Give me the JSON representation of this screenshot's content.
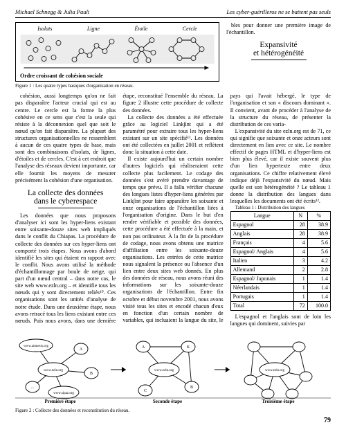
{
  "header": {
    "authors": "Michael Schnegg & Julia Pauli",
    "running_title": "Les cyber-guérilleros ne se battent pas seuls"
  },
  "figure1": {
    "labels": [
      "Isolats",
      "Ligne",
      "Étoile",
      "Cercle"
    ],
    "scale_label": "Ordre croissant de cohésion sociale",
    "caption": "Figure 1 : Les quatre types basiques d'organisation en réseau.",
    "node_fill": "#e9e9e9",
    "node_stroke": "#000000",
    "edge_color": "#000000",
    "bg": "#ececec"
  },
  "body": {
    "para1": "cohésion, aussi longtemps qu'on ne fait pas disparaître l'acteur crucial qui est au centre. Le cercle est la forme la plus cohésive en ce sens que c'est la seule qui résiste à la déconnexion quel que soit le nœud qu'on fait disparaître. La plupart des structures organisationnelles ne ressemblent à aucun de ces quatre types de base, mais sont des combinaisons d'isolats, de lignes, d'étoiles et de cercles. C'est à cet endroit que l'analyse des réseaux devient importante, car elle fournit les moyens de mesurer précisément la cohésion d'une organisation.",
    "h1_line1": "La collecte des données",
    "h1_line2": "dans le cyberespace",
    "para2": "Les données que nous proposons d'analyser ici sont les hyper-liens existant entre soixante-douze sites web impliqués dans le conflit du Chiapas. La procédure de collecte des données sur ces hyper-liens ont comporté trois étapes. Nous avons d'abord identifié les sites qui étaient en rapport avec le conflit. Nous avons utilisé la méthode d'échantillonnage par boule de neige, qui part d'un nœud central – dans notre cas, le site web www.ezln.org – et identifie tous les nœuds qui y sont directement reliés¹⁰. Ces organisations sont les unités d'analyse de notre étude. Dans une deuxième étape, nous avons retracé tous les liens existant entre ces nœuds. Puis nous avons, dans une dernière étape, reconstitué l'ensemble du réseau. La figure 2 illustre cette procédure de collecte des données.",
    "para3": "La collecte des données a été effectuée grâce au logiciel Link∫int qui a été paramétré pour extraire tous les hyper-liens existant sur un site spécifié¹¹. Les données ont été collectées en juillet 2001 et reflètent donc la situation à cette date.",
    "para4": "Il existe aujourd'hui un certain nombre d'autres logiciels qui réaliseraient cette collecte plus facilement. Le codage des données s'est avéré prendre davantage de temps que prévu. Il a fallu vérifier chacune des longues listes d'hyper-liens générées par Link∫int pour faire apparaître les soixante et onze organisations de l'échantillon liées à l'organisation d'origine. Dans le but d'en rendre vérifiable et possible des données, cette procédure a été effectuée à la main, et non pas ordinateur. À la fin de la procédure de codage, nous avons obtenu une matrice d'affiliation entre les soixante-douze organisations. Les entrées de cette matrice nous signalent la présence ou l'absence d'un lien entre deux sites web donnés. En plus des données de réseau, nous avons réuni des informations sur les soixante-douze organisations de l'échantillon. Entre fin octobre et début novembre 2001, nous avons visité tous les sites et encodé chacun d'eux en fonction d'un certain nombre de variables, qui incluaient la langue du site, le pays qui l'avait hébergé, le type de l'organisation et son « discours dominant ». Il convient, avant de procéder à l'analyse de la structure du réseau, de présenter la distribution de ces varia-",
    "para_topright": "bles pour donner une première image de l'échantillon.",
    "h2_line1": "Expansivité",
    "h2_line2": "et hétérogénéité",
    "para5": "L'expansivité du site ezln.org est de 71, ce qui signifie que soixante et onze acteurs sont directement en lien avec ce site. Le nombre effectif de pages HTML et d'hyper-liens est bien plus élevé, car il existe souvent plus d'un lien hypertexte entre deux organisations. Ce chiffre relativement élevé indique déjà l'expansivité du nœud. Mais quelle est son hétérogénéité ? Le tableau 1 donne la distribution des langues dans lesquelles les documents ont été écrits¹².",
    "para6": "L'espagnol et l'anglais sont de loin les langues qui dominent, suivies par"
  },
  "table1": {
    "caption": "Tableau 1 : Distribution des langues",
    "columns": [
      "Langue",
      "N",
      "%"
    ],
    "rows": [
      [
        "Espagnol",
        "28",
        "38.9"
      ],
      [
        "Anglais",
        "28",
        "38.9"
      ],
      [
        "Français",
        "4",
        "5.6"
      ],
      [
        "Espagnol/\nAnglais",
        "4",
        "5.6"
      ],
      [
        "Italien",
        "3",
        "4.2"
      ],
      [
        "Allemand",
        "2",
        "2.8"
      ],
      [
        "Espagnol/\nJaponais",
        "1",
        "1.4"
      ],
      [
        "Néerlandais",
        "1",
        "1.4"
      ],
      [
        "Portugais",
        "1",
        "1.4"
      ],
      [
        "Total",
        "72",
        "100.0"
      ]
    ],
    "border_color": "#000000"
  },
  "figure2": {
    "stage_labels": [
      "Première étape",
      "Seconde étape",
      "Troisième étape"
    ],
    "node_labels": [
      "www.amnesty.org",
      "www.ezln.org",
      "www.sipaz.org",
      "A",
      "K",
      "www.ezln.org",
      "B",
      "C",
      "www.ezln.org"
    ],
    "caption": "Figure 2 : Collecte des données et reconstitution du réseau.",
    "bg": "#ffffff",
    "node_fill": "#ffffff",
    "node_stroke": "#000000"
  },
  "page_number": "79"
}
